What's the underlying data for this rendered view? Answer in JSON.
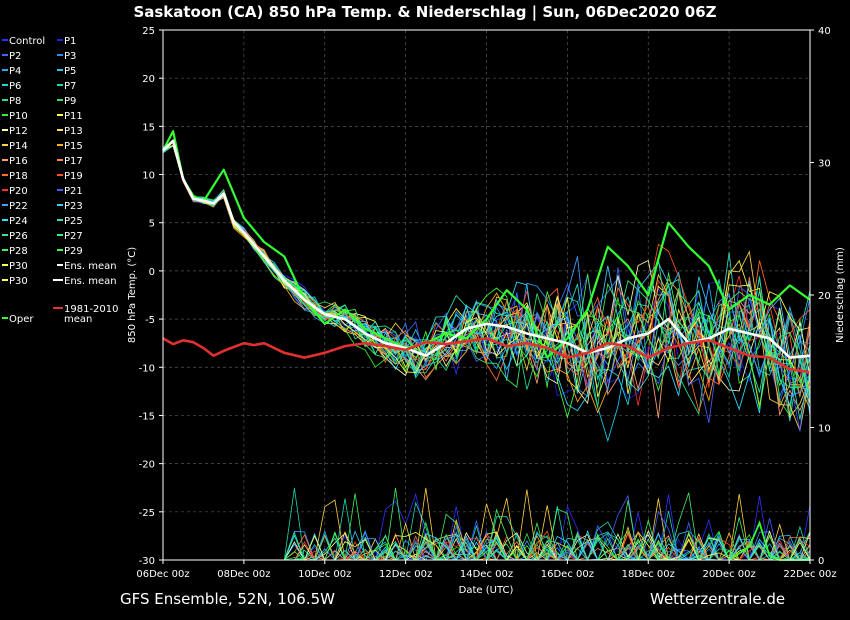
{
  "chart_data": {
    "type": "line",
    "title": "Saskatoon  (CA)  850 hPa Temp. & Niederschlag | Sun, 06Dec2020 06Z",
    "xlabel": "Date (UTC)",
    "ylabel": "850 hPa Temp. (°C)",
    "y2label": "Niederschlag (mm)",
    "ylim": [
      -30,
      25
    ],
    "y2lim": [
      0,
      40
    ],
    "yticks": [
      25,
      20,
      15,
      10,
      5,
      0,
      -5,
      -10,
      -15,
      -20,
      -25,
      -30
    ],
    "y2ticks": [
      40,
      30,
      20,
      10,
      0
    ],
    "x_days": [
      0,
      2,
      4,
      6,
      8,
      10,
      12,
      14,
      16
    ],
    "x_ticklabels": [
      "06Dec 00z",
      "08Dec 00z",
      "10Dec 00z",
      "12Dec 00z",
      "14Dec 00z",
      "16Dec 00z",
      "18Dec 00z",
      "20Dec 00z",
      "22Dec 00z"
    ],
    "legend": [
      {
        "name": "Control",
        "color": "#3030ff"
      },
      {
        "name": "P1",
        "color": "#2020e0"
      },
      {
        "name": "P2",
        "color": "#3a6aff"
      },
      {
        "name": "P3",
        "color": "#2f8cff"
      },
      {
        "name": "P4",
        "color": "#28a8ff"
      },
      {
        "name": "P5",
        "color": "#20c8f0"
      },
      {
        "name": "P6",
        "color": "#1ad8d8"
      },
      {
        "name": "P7",
        "color": "#1ad8b0"
      },
      {
        "name": "P8",
        "color": "#20e090"
      },
      {
        "name": "P9",
        "color": "#30e060"
      },
      {
        "name": "P10",
        "color": "#33ee33"
      },
      {
        "name": "P11",
        "color": "#ffff40"
      },
      {
        "name": "P12",
        "color": "#ffffa8"
      },
      {
        "name": "P13",
        "color": "#ffd860"
      },
      {
        "name": "P14",
        "color": "#ffd040"
      },
      {
        "name": "P15",
        "color": "#ffb020"
      },
      {
        "name": "P16",
        "color": "#ffa070"
      },
      {
        "name": "P17",
        "color": "#ff8050"
      },
      {
        "name": "P18",
        "color": "#ff7030"
      },
      {
        "name": "P19",
        "color": "#ff5020"
      },
      {
        "name": "P20",
        "color": "#ff3030"
      },
      {
        "name": "P21",
        "color": "#4060ff"
      },
      {
        "name": "P22",
        "color": "#40a0ff"
      },
      {
        "name": "P23",
        "color": "#40c8ff"
      },
      {
        "name": "P24",
        "color": "#30e0ff"
      },
      {
        "name": "P25",
        "color": "#30e0c0"
      },
      {
        "name": "P26",
        "color": "#30e8a0"
      },
      {
        "name": "P27",
        "color": "#30f080"
      },
      {
        "name": "P28",
        "color": "#40f060"
      },
      {
        "name": "P29",
        "color": "#40ff40"
      },
      {
        "name": "P30",
        "color": "#ffff50"
      },
      {
        "name": "Ens. mean",
        "color": "#ffffff"
      },
      {
        "name": "1981-2010 mean",
        "color": "#e03030"
      },
      {
        "name": "Oper",
        "color": "#33ff33"
      }
    ],
    "series": [
      {
        "name": "Oper",
        "days": [
          0,
          0.25,
          0.5,
          0.75,
          1,
          1.5,
          2,
          2.5,
          3,
          3.5,
          4,
          4.5,
          5,
          5.5,
          6,
          6.5,
          7,
          7.5,
          8,
          8.5,
          9,
          9.5,
          10,
          10.5,
          11,
          11.5,
          12,
          12.5,
          13,
          13.5,
          14,
          14.5,
          15,
          15.5,
          16
        ],
        "values": [
          12.5,
          14.5,
          9.5,
          7.8,
          7.2,
          10.5,
          5.5,
          3.0,
          1.5,
          -3.0,
          -5.5,
          -4.0,
          -6.0,
          -7.0,
          -8.0,
          -7.5,
          -6.5,
          -7.0,
          -5.0,
          -2.0,
          -4.0,
          -9.0,
          -7.0,
          -4.0,
          2.5,
          0.5,
          -2.5,
          5.0,
          2.5,
          0.5,
          -4.0,
          -2.5,
          -3.5,
          -1.5,
          -3.0
        ]
      },
      {
        "name": "Ens. mean",
        "days": [
          0,
          0.25,
          0.5,
          0.75,
          1,
          1.25,
          1.5,
          1.75,
          2,
          2.5,
          3,
          3.5,
          4,
          4.5,
          5,
          5.5,
          6,
          6.5,
          7,
          7.5,
          8,
          8.5,
          9,
          9.5,
          10,
          10.5,
          11,
          11.5,
          12,
          12.5,
          13,
          13.5,
          14,
          14.5,
          15,
          15.5,
          16
        ],
        "values": [
          12.5,
          13.5,
          9.5,
          7.5,
          7.3,
          7.0,
          8.0,
          5.0,
          4.0,
          1.5,
          -1.0,
          -3.0,
          -4.5,
          -5.0,
          -6.5,
          -7.5,
          -8.0,
          -8.8,
          -7.5,
          -6.0,
          -5.5,
          -5.8,
          -6.5,
          -7.0,
          -7.5,
          -8.5,
          -8.0,
          -7.0,
          -6.5,
          -5.0,
          -7.5,
          -7.0,
          -6.0,
          -6.5,
          -7.0,
          -9.0,
          -8.8
        ]
      },
      {
        "name": "1981-2010 mean",
        "days": [
          0,
          0.25,
          0.5,
          0.75,
          1,
          1.25,
          1.5,
          1.75,
          2,
          2.25,
          2.5,
          3,
          3.5,
          4,
          4.5,
          5,
          5.5,
          6,
          6.5,
          7,
          7.5,
          8,
          8.5,
          9,
          9.5,
          10,
          10.5,
          11,
          11.5,
          12,
          12.5,
          13,
          13.5,
          14,
          14.5,
          15,
          15.5,
          16
        ],
        "values": [
          -7.0,
          -7.6,
          -7.2,
          -7.4,
          -8.0,
          -8.8,
          -8.3,
          -7.9,
          -7.5,
          -7.7,
          -7.5,
          -8.5,
          -9.0,
          -8.5,
          -7.8,
          -7.5,
          -7.8,
          -8.2,
          -7.4,
          -7.6,
          -7.3,
          -7.0,
          -7.8,
          -7.5,
          -8.0,
          -9.0,
          -8.5,
          -7.5,
          -7.8,
          -9.0,
          -8.0,
          -7.5,
          -7.2,
          -8.0,
          -8.8,
          -9.0,
          -10.2,
          -10.5
        ]
      }
    ]
  },
  "footer": {
    "left": "GFS Ensemble, 52N, 106.5W",
    "right": "Wetterzentrale.de"
  }
}
